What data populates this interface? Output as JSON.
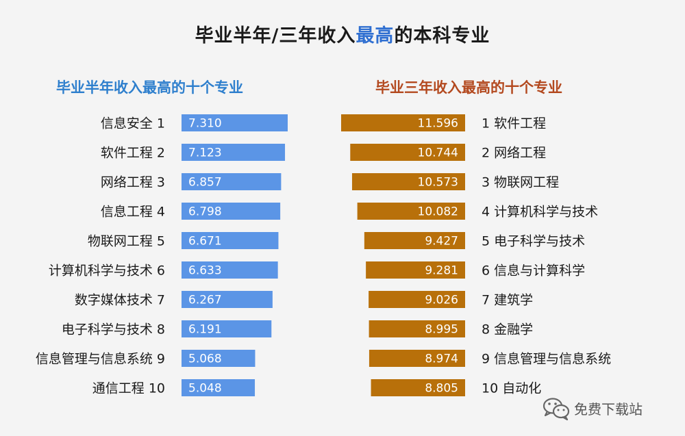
{
  "title": {
    "before": "毕业半年/三年收入",
    "highlight": "最高",
    "after": "的本科专业"
  },
  "colors": {
    "left_bar": "#5b95e6",
    "right_bar": "#b8700a",
    "highlight": "#2f6fd1",
    "left_title": "#2e7fcd",
    "right_title": "#b3491f"
  },
  "watermark": {
    "text": "免费下载站",
    "icon": "wechat-icon"
  },
  "chart_data": [
    {
      "type": "bar",
      "orientation": "horizontal",
      "title": "毕业半年收入最高的十个专业",
      "categories": [
        "信息安全 1",
        "软件工程 2",
        "网络工程 3",
        "信息工程 4",
        "物联网工程 5",
        "计算机科学与技术 6",
        "数字媒体技术 7",
        "电子科学与技术 8",
        "信息管理与信息系统 9",
        "通信工程 10"
      ],
      "value_labels": [
        "7.310",
        "7.123",
        "6.857",
        "6.798",
        "6.671",
        "6.633",
        "6.267",
        "6.191",
        "5.068",
        "5.048"
      ],
      "values": [
        7.31,
        7.123,
        6.857,
        6.798,
        6.671,
        6.633,
        6.267,
        6.191,
        5.068,
        5.048
      ]
    },
    {
      "type": "bar",
      "orientation": "horizontal",
      "title": "毕业三年收入最高的十个专业",
      "categories": [
        "1 软件工程",
        "2 网络工程",
        "3 物联网工程",
        "4 计算机科学与技术",
        "5 电子科学与技术",
        "6 信息与计算科学",
        "7 建筑学",
        "8 金融学",
        "9 信息管理与信息系统",
        "10 自动化"
      ],
      "value_labels": [
        "11.596",
        "10.744",
        "10.573",
        "10.082",
        "9.427",
        "9.281",
        "9.026",
        "8.995",
        "8.974",
        "8.805"
      ],
      "values": [
        11.596,
        10.744,
        10.573,
        10.082,
        9.427,
        9.281,
        9.026,
        8.995,
        8.974,
        8.805
      ]
    }
  ]
}
